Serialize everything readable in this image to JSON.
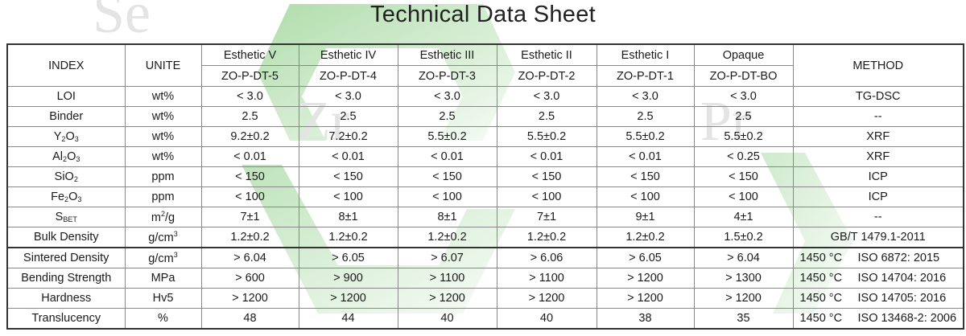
{
  "title": "Technical Data Sheet",
  "columns": {
    "index": "INDEX",
    "unit": "UNITE",
    "method": "METHOD",
    "products": [
      {
        "name": "Esthetic V",
        "code": "ZO-P-DT-5"
      },
      {
        "name": "Esthetic IV",
        "code": "ZO-P-DT-4"
      },
      {
        "name": "Esthetic III",
        "code": "ZO-P-DT-3"
      },
      {
        "name": "Esthetic II",
        "code": "ZO-P-DT-2"
      },
      {
        "name": "Esthetic I",
        "code": "ZO-P-DT-1"
      },
      {
        "name": "Opaque",
        "code": "ZO-P-DT-BO"
      }
    ]
  },
  "rows": [
    {
      "index": "LOI",
      "unit": "wt%",
      "values": [
        "< 3.0",
        "< 3.0",
        "< 3.0",
        "< 3.0",
        "< 3.0",
        "< 3.0"
      ],
      "method": "TG-DSC"
    },
    {
      "index": "Binder",
      "unit": "wt%",
      "values": [
        "2.5",
        "2.5",
        "2.5",
        "2.5",
        "2.5",
        "2.5"
      ],
      "method": "--"
    },
    {
      "index": [
        "Y",
        "2",
        "O",
        "3"
      ],
      "unit": "wt%",
      "values": [
        "9.2±0.2",
        "7.2±0.2",
        "5.5±0.2",
        "5.5±0.2",
        "5.5±0.2",
        "5.5±0.2"
      ],
      "method": "XRF"
    },
    {
      "index": [
        "Al",
        "2",
        "O",
        "3"
      ],
      "unit": "wt%",
      "values": [
        "< 0.01",
        "< 0.01",
        "< 0.01",
        "< 0.01",
        "< 0.01",
        "< 0.25"
      ],
      "method": "XRF"
    },
    {
      "index": [
        "SiO",
        "2",
        "",
        ""
      ],
      "unit": "ppm",
      "values": [
        "< 150",
        "< 150",
        "< 150",
        "< 150",
        "< 150",
        "< 150"
      ],
      "method": "ICP"
    },
    {
      "index": [
        "Fe",
        "2",
        "O",
        "3"
      ],
      "unit": "ppm",
      "values": [
        "< 100",
        "< 100",
        "< 100",
        "< 100",
        "< 100",
        "< 100"
      ],
      "method": "ICP"
    },
    {
      "index": [
        "S",
        "BET",
        "",
        ""
      ],
      "unit": [
        "m",
        "2",
        "/g"
      ],
      "values": [
        "7±1",
        "8±1",
        "8±1",
        "7±1",
        "9±1",
        "4±1"
      ],
      "method": "--"
    },
    {
      "index": "Bulk Density",
      "unit": [
        "g/cm",
        "3",
        ""
      ],
      "values": [
        "1.2±0.2",
        "1.2±0.2",
        "1.2±0.2",
        "1.2±0.2",
        "1.2±0.2",
        "1.5±0.2"
      ],
      "method": "GB/T 1479.1-2011"
    },
    {
      "index": "Sintered Density",
      "unit": [
        "g/cm",
        "3",
        ""
      ],
      "values": [
        "> 6.04",
        "> 6.05",
        "> 6.07",
        "> 6.06",
        "> 6.05",
        "> 6.04"
      ],
      "method_temp": "1450 °C",
      "method_std": "ISO 6872: 2015"
    },
    {
      "index": "Bending Strength",
      "unit": "MPa",
      "values": [
        "> 600",
        "> 900",
        "> 1100",
        "> 1100",
        "> 1200",
        "> 1300"
      ],
      "method_temp": "1450 °C",
      "method_std": "ISO 14704: 2016"
    },
    {
      "index": "Hardness",
      "unit": "Hv5",
      "values": [
        "> 1200",
        "> 1200",
        "> 1200",
        "> 1200",
        "> 1200",
        "> 1200"
      ],
      "method_temp": "1450 °C",
      "method_std": "ISO 14705: 2016"
    },
    {
      "index": "Translucency",
      "unit": "%",
      "values": [
        "48",
        "44",
        "40",
        "40",
        "38",
        "35"
      ],
      "method_temp": "1450 °C",
      "method_std": "ISO 13468-2: 2006"
    }
  ],
  "watermark": {
    "letters": [
      "Se",
      "Zr",
      "Pr"
    ],
    "color": "#62b85a"
  }
}
